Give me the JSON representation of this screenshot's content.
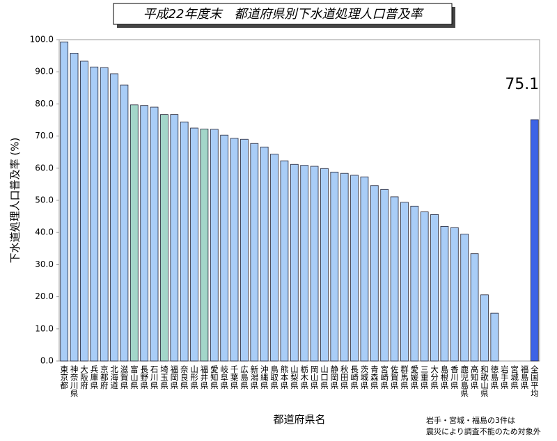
{
  "chart_data": {
    "type": "bar",
    "title": "平成22年度末　都道府県別下水道処理人口普及率",
    "y_label": "下水道処理人口普及率 (%)",
    "x_label": "都道府県名",
    "note": [
      "岩手・宮城・福島の3件は",
      "震災により調査不能のため対象外"
    ],
    "categories": [
      "東京都",
      "神奈川県",
      "大阪府",
      "兵庫県",
      "京都府",
      "北海道",
      "滋賀県",
      "富山県",
      "長野県",
      "石川県",
      "埼玉県",
      "福岡県",
      "奈良県",
      "山形県",
      "福井県",
      "愛知県",
      "岐阜県",
      "千葉県",
      "広島県",
      "新潟県",
      "沖縄県",
      "鳥取県",
      "熊本県",
      "山梨県",
      "栃木県",
      "岡山県",
      "山口県",
      "静岡県",
      "秋田県",
      "長崎県",
      "茨城県",
      "青森県",
      "宮崎県",
      "佐賀県",
      "群馬県",
      "愛媛県",
      "三重県",
      "大分県",
      "島根県",
      "香川県",
      "鹿児島県",
      "高知県",
      "和歌山県",
      "徳島県",
      "岩手県",
      "宮城県",
      "福島県",
      "全国平均"
    ],
    "values": [
      99.3,
      95.8,
      93.3,
      91.5,
      91.3,
      89.4,
      85.9,
      79.7,
      79.5,
      79.0,
      76.7,
      76.7,
      74.4,
      72.5,
      72.2,
      72.1,
      70.3,
      69.3,
      69.0,
      67.7,
      66.6,
      64.4,
      62.3,
      61.2,
      60.9,
      60.6,
      59.9,
      58.8,
      58.4,
      57.8,
      57.3,
      54.6,
      53.4,
      51.1,
      49.4,
      48.2,
      46.4,
      45.6,
      41.9,
      41.5,
      39.5,
      33.4,
      20.6,
      14.9,
      null,
      null,
      null,
      75.1
    ],
    "colors": [
      "#a9cdf7",
      "#a9cdf7",
      "#a9cdf7",
      "#a9cdf7",
      "#a9cdf7",
      "#a9cdf7",
      "#a9cdf7",
      "#a3d6c9",
      "#a9cdf7",
      "#a9cdf7",
      "#a3d6c9",
      "#a9cdf7",
      "#a9cdf7",
      "#a9cdf7",
      "#a3d6c9",
      "#a9cdf7",
      "#a9cdf7",
      "#a9cdf7",
      "#a9cdf7",
      "#a9cdf7",
      "#a9cdf7",
      "#a9cdf7",
      "#a9cdf7",
      "#a9cdf7",
      "#a9cdf7",
      "#a9cdf7",
      "#a9cdf7",
      "#a9cdf7",
      "#a9cdf7",
      "#a9cdf7",
      "#a9cdf7",
      "#a9cdf7",
      "#a9cdf7",
      "#a9cdf7",
      "#a9cdf7",
      "#a9cdf7",
      "#a9cdf7",
      "#a9cdf7",
      "#a9cdf7",
      "#a9cdf7",
      "#a9cdf7",
      "#a9cdf7",
      "#a9cdf7",
      "#a9cdf7",
      null,
      null,
      null,
      "#3d63e6"
    ],
    "ylim": [
      0,
      100
    ],
    "yticks": [
      {
        "value": 0,
        "label": "0.0"
      },
      {
        "value": 10,
        "label": "10.0"
      },
      {
        "value": 20,
        "label": "20.0"
      },
      {
        "value": 30,
        "label": "30.0"
      },
      {
        "value": 40,
        "label": "40.0"
      },
      {
        "value": 50,
        "label": "50.0"
      },
      {
        "value": 60,
        "label": "60.0"
      },
      {
        "value": 70,
        "label": "70.0"
      },
      {
        "value": 80,
        "label": "80.0"
      },
      {
        "value": 90,
        "label": "90.0"
      },
      {
        "value": 100,
        "label": "100.0"
      }
    ],
    "grid": false
  }
}
